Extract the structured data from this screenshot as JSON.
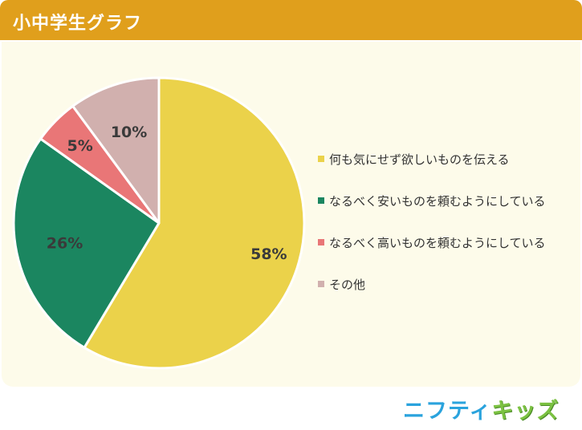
{
  "header": {
    "title": "小中学生グラフ"
  },
  "chart_data": {
    "type": "pie",
    "categories": [
      "何も気にせず欲しいものを伝える",
      "なるべく安いものを頼むようにしている",
      "なるべく高いものを頼むようにしている",
      "その他"
    ],
    "values": [
      58,
      26,
      5,
      10
    ],
    "labels": [
      "58%",
      "26%",
      "5%",
      "10%"
    ],
    "colors": [
      "#ebd24a",
      "#1b8660",
      "#e97677",
      "#d1b0ae"
    ],
    "start": "12 o'clock",
    "direction": "clockwise",
    "legend_position": "right"
  },
  "logo": {
    "part1": "ニフティ",
    "part2": "キッズ"
  }
}
